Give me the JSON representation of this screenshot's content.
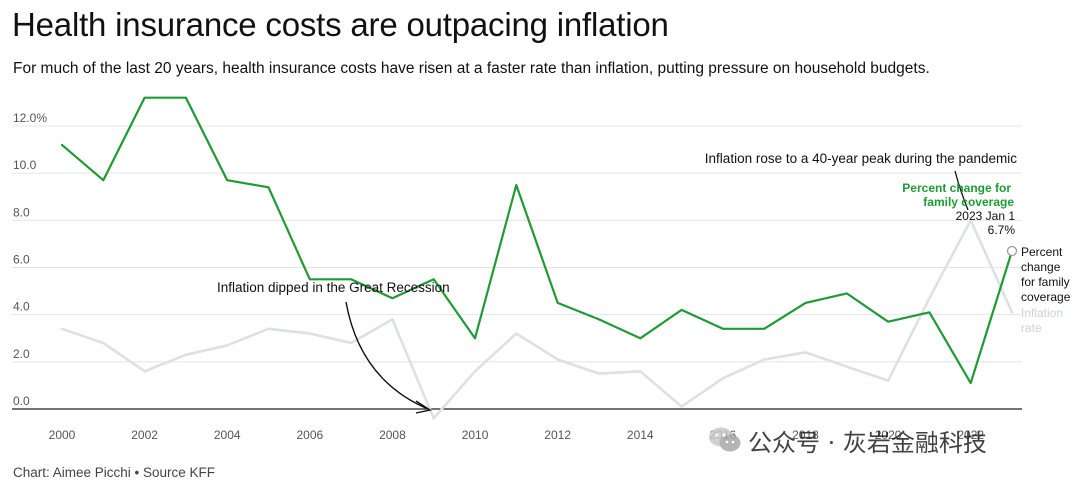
{
  "title": "Health insurance costs are outpacing inflation",
  "subtitle": "For much of the last 20 years, health insurance costs have risen at a faster rate than inflation, putting pressure on household budgets.",
  "credit": "Chart: Aimee Picchi • Source KFF",
  "watermark": {
    "text": "公众号 · 灰岩金融科技",
    "icon": "wechat-icon"
  },
  "chart_data": {
    "type": "line",
    "title": "Health insurance costs are outpacing inflation",
    "ylim": [
      0,
      12.0
    ],
    "xlim": [
      2000,
      2023
    ],
    "y_ticks": [
      "0.0",
      "2.0",
      "4.0",
      "6.0",
      "8.0",
      "10.0",
      "12.0%"
    ],
    "x_ticks": [
      "2000",
      "2002",
      "2004",
      "2006",
      "2008",
      "2010",
      "2012",
      "2014",
      "2016",
      "2018",
      "2020",
      "2022"
    ],
    "grid": "horizontal",
    "series": [
      {
        "name": "Percent change for family coverage",
        "color": "#1f9a34",
        "x": [
          2000,
          2001,
          2002,
          2003,
          2004,
          2005,
          2006,
          2007,
          2008,
          2009,
          2010,
          2011,
          2012,
          2013,
          2014,
          2015,
          2016,
          2017,
          2018,
          2019,
          2020,
          2021,
          2022,
          2023
        ],
        "values": [
          11.2,
          9.7,
          13.2,
          13.2,
          9.7,
          9.4,
          5.5,
          5.5,
          4.7,
          5.5,
          3.0,
          9.5,
          4.5,
          3.8,
          3.0,
          4.2,
          3.4,
          3.4,
          4.5,
          4.9,
          3.7,
          4.1,
          1.1,
          6.7
        ]
      },
      {
        "name": "Inflation rate",
        "color": "#dbe3df",
        "x": [
          2000,
          2001,
          2002,
          2003,
          2004,
          2005,
          2006,
          2007,
          2008,
          2009,
          2010,
          2011,
          2012,
          2013,
          2014,
          2015,
          2016,
          2017,
          2018,
          2019,
          2020,
          2021,
          2022,
          2023
        ],
        "values": [
          3.4,
          2.8,
          1.6,
          2.3,
          2.7,
          3.4,
          3.2,
          2.8,
          3.8,
          -0.4,
          1.6,
          3.2,
          2.1,
          1.5,
          1.6,
          0.1,
          1.3,
          2.1,
          2.4,
          1.8,
          1.2,
          4.7,
          8.0,
          4.1
        ]
      }
    ],
    "annotations": {
      "pandemic": "Inflation rose to a 40-year peak during the pandemic",
      "recession": "Inflation dipped in the Great Recession",
      "green_label_line1": "Percent change for",
      "green_label_line2": "family coverage",
      "point_label_line1": "2023 Jan 1",
      "point_label_line2": "6.7%",
      "end_label_lines": [
        "Percent",
        "change",
        "for family",
        "coverage"
      ],
      "inflation_label_lines": [
        "Inflation",
        "rate"
      ]
    }
  }
}
